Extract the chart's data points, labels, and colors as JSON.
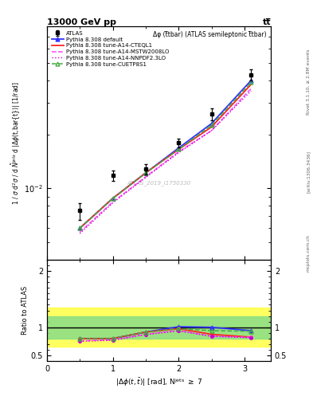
{
  "title_left": "13000 GeV pp",
  "title_right": "tt̅",
  "plot_title": "Δφ (t̅tbar) (ATLAS semileptonic t̅tbar)",
  "watermark": "ATLAS_2019_I1750330",
  "rivet_label": "Rivet 3.1.10, ≥ 2.8M events",
  "arxiv_label": "[arXiv:1306.3436]",
  "mcplots_label": "mcplots.cern.ch",
  "ylabel_main": "1 / σ d²σ / d Nᵉˢ d |Δφ(t,bar{t})| [1/rad]",
  "ylabel_ratio": "Ratio to ATLAS",
  "xlabel": "|Δφ(t,bar{t})| [rad], Nᵉˢ ≥ 7",
  "atlas_x": [
    0.5,
    1.0,
    1.5,
    2.0,
    2.5,
    3.1
  ],
  "atlas_y": [
    0.0075,
    0.0118,
    0.0128,
    0.018,
    0.026,
    0.043
  ],
  "atlas_yerr": [
    0.0008,
    0.0008,
    0.0008,
    0.001,
    0.002,
    0.003
  ],
  "mc_x": [
    0.5,
    1.0,
    1.5,
    2.0,
    2.5,
    3.1
  ],
  "pythia_default_y": [
    0.006,
    0.0088,
    0.0122,
    0.0168,
    0.023,
    0.04
  ],
  "pythia_cteql1_y": [
    0.006,
    0.0088,
    0.0122,
    0.0165,
    0.022,
    0.038
  ],
  "pythia_mstw_y": [
    0.0057,
    0.0084,
    0.0116,
    0.016,
    0.021,
    0.036
  ],
  "pythia_nnpdf_y": [
    0.0056,
    0.0083,
    0.0115,
    0.0158,
    0.021,
    0.035
  ],
  "pythia_cuetp_y": [
    0.006,
    0.0088,
    0.0122,
    0.0165,
    0.0225,
    0.039
  ],
  "ratio_default_y": [
    0.8,
    0.8,
    0.915,
    1.01,
    1.0,
    0.94
  ],
  "ratio_cteql1_y": [
    0.8,
    0.8,
    0.915,
    0.975,
    0.875,
    0.825
  ],
  "ratio_mstw_y": [
    0.76,
    0.775,
    0.875,
    0.945,
    0.84,
    0.82
  ],
  "ratio_nnpdf_y": [
    0.75,
    0.77,
    0.87,
    0.935,
    0.84,
    0.815
  ],
  "ratio_cuetp_y": [
    0.8,
    0.8,
    0.915,
    0.975,
    0.94,
    0.93
  ],
  "yellow_lo": 0.65,
  "yellow_hi": 1.35,
  "green_lo": 0.8,
  "green_hi": 1.2,
  "color_default": "#3333ff",
  "color_cteql1": "#ff2222",
  "color_mstw": "#ff44ff",
  "color_nnpdf": "#cc00cc",
  "color_cuetp": "#44aa44",
  "ylim_main": [
    0.004,
    0.08
  ],
  "ylim_ratio": [
    0.4,
    2.2
  ],
  "xlim": [
    0.0,
    3.4
  ],
  "bg": "#ffffff"
}
